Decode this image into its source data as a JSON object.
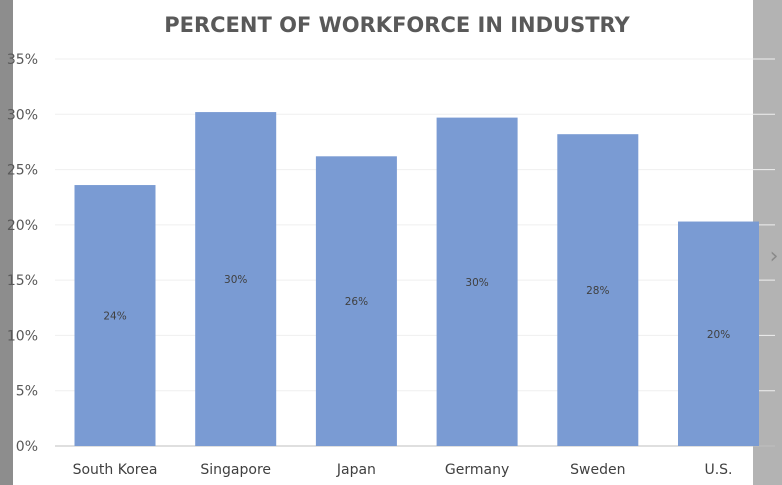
{
  "viewer": {
    "prev_arrow": "‹",
    "next_arrow": "›",
    "strip_color": "#8d8d8d",
    "right_strip_color": "#b3b3b3"
  },
  "chart_data": {
    "type": "bar",
    "title": "PERCENT OF WORKFORCE IN INDUSTRY",
    "xlabel": "",
    "ylabel": "",
    "categories": [
      "South Korea",
      "Singapore",
      "Japan",
      "Germany",
      "Sweden",
      "U.S."
    ],
    "values": [
      23.6,
      30.2,
      26.2,
      29.7,
      28.2,
      20.3
    ],
    "data_labels": [
      "24%",
      "30%",
      "26%",
      "30%",
      "28%",
      "20%"
    ],
    "y_ticks": [
      0,
      5,
      10,
      15,
      20,
      25,
      30,
      35
    ],
    "y_tick_labels": [
      "0%",
      "5%",
      "10%",
      "15%",
      "20%",
      "25%",
      "30%",
      "35%"
    ],
    "ylim": [
      0,
      35
    ],
    "grid": true,
    "legend": "none",
    "bar_color": "#7a9bd3",
    "grid_color": "#efefef",
    "axis_color": "#bfbfbf"
  }
}
